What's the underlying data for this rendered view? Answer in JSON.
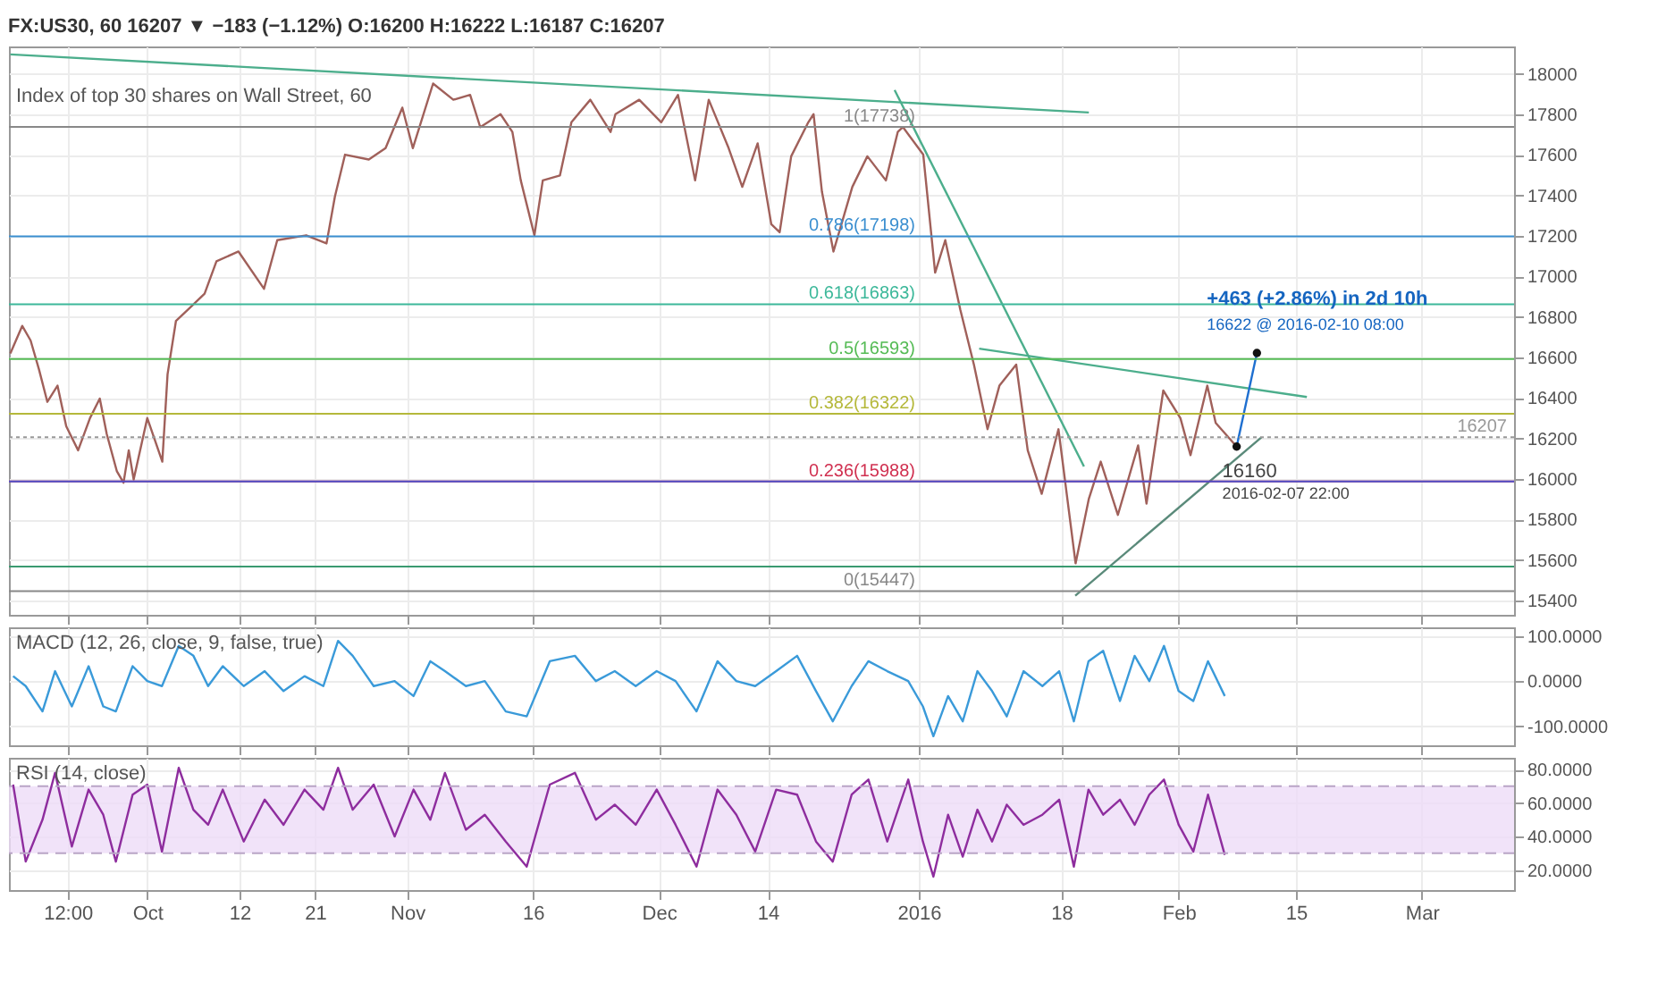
{
  "chart_data": [
    {
      "type": "line",
      "title": "FX:US30, 60 16207 ▼ −183 (−1.12%) O:16200 H:16222 L:16187 C:16207",
      "subtitle": "Index of top 30 shares on Wall Street, 60",
      "series": [
        {
          "color": "#a0605a",
          "x": [
            "2015-09-14T16:00",
            "2015-09-16T02:00",
            "2015-09-17T02:00",
            "2015-09-18T02:00",
            "2015-09-19T02:00",
            "2015-09-20T07:00",
            "2015-09-21T08:00",
            "2015-09-22T18:00",
            "2015-09-24T04:00",
            "2015-09-25T08:00",
            "2015-09-26T04:00",
            "2015-09-27T09:00",
            "2015-09-28T04:00",
            "2015-09-28T19:00",
            "2015-09-29T09:00",
            "2015-10-01T00:00",
            "2015-10-02T19:00",
            "2015-10-03T10:00",
            "2015-10-04T10:00",
            "2015-10-05T20:00",
            "2015-10-07T20:00",
            "2015-10-09T06:00",
            "2015-10-11T21:00",
            "2015-10-14T22:00",
            "2015-10-16T12:00",
            "2015-10-19T23:00",
            "2015-10-22T09:00",
            "2015-10-23T09:00",
            "2015-10-24T14:00",
            "2015-10-27T10:00",
            "2015-10-29T10:00",
            "2015-10-31T10:00",
            "2015-11-01T16:00",
            "2015-11-04T02:00",
            "2015-11-06T12:00",
            "2015-11-08T12:00",
            "2015-11-09T17:00",
            "2015-11-12T03:00",
            "2015-11-13T13:00",
            "2015-11-14T13:00",
            "2015-11-16T04:00",
            "2015-11-17T04:00",
            "2015-11-19T05:00",
            "2015-11-20T14:00",
            "2015-11-22T20:00",
            "2015-11-25T06:00",
            "2015-11-25T20:00",
            "2015-11-28T16:00",
            "2015-12-01T07:00",
            "2015-12-03T07:00",
            "2015-12-05T08:00",
            "2015-12-06T23:00",
            "2015-12-09T08:00",
            "2015-12-10T23:00",
            "2015-12-12T19:00",
            "2015-12-14T10:00",
            "2015-12-15T10:00",
            "2015-12-16T19:00",
            "2015-12-18T20:00",
            "2015-12-19T11:00",
            "2015-12-20T11:00",
            "2015-12-21T20:00",
            "2015-12-24T02:00",
            "2015-12-25T21:00",
            "2015-12-28T02:00",
            "2015-12-29T12:00",
            "2015-12-30T03:00",
            "2016-01-01T13:00",
            "2016-01-02T23:00",
            "2016-01-04T04:00",
            "2016-01-05T23:00",
            "2016-01-07T14:00",
            "2016-01-09T05:00",
            "2016-01-10T15:00",
            "2016-01-12T15:00",
            "2016-01-14T00:00",
            "2016-01-15T16:00",
            "2016-01-17T16:00",
            "2016-01-19T17:00",
            "2016-01-21T07:00",
            "2016-01-22T17:00",
            "2016-01-24T18:00",
            "2016-01-27T04:00",
            "2016-01-28T04:00",
            "2016-01-30T04:00",
            "2016-02-01T05:00",
            "2016-02-02T10:00",
            "2016-02-04T10:00",
            "2016-02-05T10:00",
            "2016-02-07T22:00"
          ],
          "values": [
            16620,
            16756,
            16684,
            16541,
            16381,
            16461,
            16261,
            16142,
            16301,
            16397,
            16222,
            16038,
            15982,
            16142,
            15998,
            16301,
            16086,
            16517,
            16780,
            16836,
            16915,
            17075,
            17123,
            16939,
            17179,
            17203,
            17163,
            17394,
            17601,
            17577,
            17633,
            17833,
            17633,
            17952,
            17872,
            17896,
            17737,
            17801,
            17713,
            17474,
            17203,
            17474,
            17498,
            17761,
            17872,
            17713,
            17801,
            17872,
            17761,
            17896,
            17474,
            17872,
            17633,
            17442,
            17657,
            17258,
            17218,
            17593,
            17761,
            17801,
            17418,
            17123,
            17442,
            17593,
            17474,
            17713,
            17737,
            17601,
            17019,
            17179,
            16836,
            16565,
            16246,
            16461,
            16565,
            16142,
            15927,
            16246,
            15584,
            15903,
            16086,
            15823,
            16166,
            15879,
            16437,
            16301,
            16118,
            16461,
            16277,
            16160
          ]
        },
        {
          "type": "line",
          "color": "#4cae8c",
          "x": [
            "2015-09-14T16:00",
            "2016-01-21T07:00"
          ],
          "values": [
            18096,
            17809
          ]
        },
        {
          "type": "line",
          "color": "#4cae8c",
          "x": [
            "2015-12-29T03:00",
            "2016-01-20T17:00"
          ],
          "values": [
            17920,
            16062
          ]
        },
        {
          "type": "line",
          "color": "#4cae8c",
          "x": [
            "2016-01-08T05:00",
            "2016-02-16T07:00"
          ],
          "values": [
            16644,
            16405
          ]
        },
        {
          "type": "line",
          "color": "#5a8a7a",
          "x": [
            "2016-01-19T16:00",
            "2016-02-10T21:00"
          ],
          "values": [
            15424,
            16206
          ]
        },
        {
          "type": "line",
          "color": "#1e6fd0",
          "marker": "circle",
          "x": [
            "2016-02-07T22:00",
            "2016-02-10T08:00"
          ],
          "values": [
            16160,
            16622
          ]
        }
      ],
      "xlim": [
        "2015-09-14T12:00",
        "2016-03-12T00:00"
      ],
      "xticks": [
        {
          "value": "2015-09-21T12:00",
          "label": null
        },
        {
          "value": "2015-10-01",
          "label": null
        },
        {
          "value": "2015-10-12",
          "label": null
        },
        {
          "value": "2015-10-21",
          "label": null
        },
        {
          "value": "2015-11-01",
          "label": null
        },
        {
          "value": "2015-11-16",
          "label": null
        },
        {
          "value": "2015-12-01",
          "label": null
        },
        {
          "value": "2015-12-14",
          "label": null
        },
        {
          "value": "2016-01-01",
          "label": null
        },
        {
          "value": "2016-01-18",
          "label": null
        },
        {
          "value": "2016-02-01",
          "label": null
        },
        {
          "value": "2016-02-15",
          "label": null
        },
        {
          "value": "2016-03-01",
          "label": null
        }
      ],
      "ylim": [
        15330,
        18135
      ],
      "yticks": [
        15400,
        15600,
        15800,
        16000,
        16200,
        16400,
        16600,
        16800,
        17000,
        17200,
        17400,
        17600,
        17800,
        18000
      ],
      "ref_lines": [
        {
          "axis": "y",
          "value": 17738,
          "label": "1(17738)",
          "color": "#888888"
        },
        {
          "axis": "y",
          "value": 17198,
          "label": "0.786(17198)",
          "color": "#3b8fd0"
        },
        {
          "axis": "y",
          "value": 16863,
          "label": "0.618(16863)",
          "color": "#3cb89a"
        },
        {
          "axis": "y",
          "value": 16593,
          "label": "0.5(16593)",
          "color": "#55bb55"
        },
        {
          "axis": "y",
          "value": 16322,
          "label": "0.382(16322)",
          "color": "#b5b83a"
        },
        {
          "axis": "y",
          "value": 15988,
          "label": "0.236(15988)",
          "color": "#d03050"
        },
        {
          "axis": "y",
          "value": 15447,
          "label": "0(15447)",
          "color": "#888888"
        },
        {
          "axis": "y",
          "value": 15988,
          "color": "#5050c8"
        },
        {
          "axis": "y",
          "value": 15568,
          "color": "#3a9a70"
        },
        {
          "axis": "y",
          "value": 16207,
          "label": "16207",
          "color": "#999999",
          "line_style": "dotted"
        }
      ],
      "annotations": [
        {
          "text": "+463 (+2.86%) in 2d 10h",
          "x": "2016-02-10T08:00",
          "y": 16622
        },
        {
          "text": "16622 @ 2016-02-10 08:00",
          "x": "2016-02-10T08:00",
          "y": 16622
        },
        {
          "text": "16160",
          "x": "2016-02-07T22:00",
          "y": 16160
        },
        {
          "text": "2016-02-07 22:00",
          "x": "2016-02-07T22:00",
          "y": 16160
        }
      ],
      "grid": true,
      "tick_labels": "y"
    },
    {
      "type": "line",
      "title": "MACD (12, 26, close, 9, false, true)",
      "series": [
        {
          "color": "#3a9ad9",
          "x": [
            "2015-09-15T00:00",
            "2015-09-16T12:00",
            "2015-09-18T12:00",
            "2015-09-20T00:00",
            "2015-09-22T00:00",
            "2015-09-24T00:00",
            "2015-09-25T18:00",
            "2015-09-27T06:00",
            "2015-09-29T06:00",
            "2015-10-01T00:00",
            "2015-10-02T18:00",
            "2015-10-04T18:00",
            "2015-10-06T12:00",
            "2015-10-08T06:00",
            "2015-10-10T00:00",
            "2015-10-12T12:00",
            "2015-10-15T00:00",
            "2015-10-17T06:00",
            "2015-10-19T18:00",
            "2015-10-22T00:00",
            "2015-10-23T18:00",
            "2015-10-25T12:00",
            "2015-10-28T00:00",
            "2015-10-30T12:00",
            "2015-11-01T18:00",
            "2015-11-03T18:00",
            "2015-11-05T12:00",
            "2015-11-08T00:00",
            "2015-11-10T06:00",
            "2015-11-12T18:00",
            "2015-11-15T06:00",
            "2015-11-18T00:00",
            "2015-11-21T00:00",
            "2015-11-23T12:00",
            "2015-11-25T18:00",
            "2015-11-28T06:00",
            "2015-11-30T18:00",
            "2015-12-03T00:00",
            "2015-12-05T12:00",
            "2015-12-08T00:00",
            "2015-12-10T06:00",
            "2015-12-12T12:00",
            "2015-12-15T00:00",
            "2015-12-17T12:00",
            "2015-12-19T18:00",
            "2015-12-21T18:00",
            "2015-12-24T00:00",
            "2015-12-26T00:00",
            "2015-12-28T06:00",
            "2015-12-30T18:00",
            "2016-01-01T12:00",
            "2016-01-02T18:00",
            "2016-01-04T12:00",
            "2016-01-06T06:00",
            "2016-01-08T00:00",
            "2016-01-09T18:00",
            "2016-01-11T12:00",
            "2016-01-13T12:00",
            "2016-01-15T18:00",
            "2016-01-17T18:00",
            "2016-01-19T12:00",
            "2016-01-21T06:00",
            "2016-01-23T00:00",
            "2016-01-25T00:00",
            "2016-01-26T18:00",
            "2016-01-28T12:00",
            "2016-01-30T06:00",
            "2016-02-01T00:00",
            "2016-02-02T18:00",
            "2016-02-04T12:00",
            "2016-02-06T12:00"
          ],
          "values": [
            11,
            -11,
            -67,
            22,
            -56,
            33,
            -56,
            -67,
            33,
            0,
            -11,
            78,
            56,
            -11,
            33,
            -11,
            22,
            -22,
            11,
            -11,
            89,
            56,
            -11,
            0,
            -33,
            44,
            22,
            -11,
            0,
            -67,
            -78,
            44,
            56,
            0,
            22,
            -11,
            22,
            0,
            -67,
            44,
            0,
            -11,
            22,
            56,
            -22,
            -89,
            -11,
            44,
            22,
            0,
            -56,
            -122,
            -33,
            -89,
            22,
            -22,
            -78,
            22,
            -11,
            22,
            -89,
            44,
            67,
            -44,
            56,
            0,
            78,
            -22,
            -44,
            44,
            -33
          ]
        }
      ],
      "xlim": [
        "2015-09-14T12:00",
        "2016-03-12T00:00"
      ],
      "xticks": [
        {
          "value": "2015-09-21T12:00",
          "label": null
        },
        {
          "value": "2015-10-01",
          "label": null
        },
        {
          "value": "2015-10-12",
          "label": null
        },
        {
          "value": "2015-10-21",
          "label": null
        },
        {
          "value": "2015-11-01",
          "label": null
        },
        {
          "value": "2015-11-16",
          "label": null
        },
        {
          "value": "2015-12-01",
          "label": null
        },
        {
          "value": "2015-12-14",
          "label": null
        },
        {
          "value": "2016-01-01",
          "label": null
        },
        {
          "value": "2016-01-18",
          "label": null
        },
        {
          "value": "2016-02-01",
          "label": null
        },
        {
          "value": "2016-02-15",
          "label": null
        },
        {
          "value": "2016-03-01",
          "label": null
        }
      ],
      "ylim": [
        -142,
        119
      ],
      "yticks": [
        {
          "value": -100,
          "label": "-100.0000"
        },
        {
          "value": 0,
          "label": "0.0000"
        },
        {
          "value": 100,
          "label": "100.0000"
        }
      ],
      "grid": true,
      "tick_labels": "y"
    },
    {
      "type": "line",
      "title": "RSI (14, close)",
      "series": [
        {
          "color": "#8e2d9e",
          "x": [
            "2015-09-15T00:00",
            "2015-09-16T12:00",
            "2015-09-18T12:00",
            "2015-09-20T00:00",
            "2015-09-22T00:00",
            "2015-09-24T00:00",
            "2015-09-25T18:00",
            "2015-09-27T06:00",
            "2015-09-29T06:00",
            "2015-10-01T00:00",
            "2015-10-02T18:00",
            "2015-10-04T18:00",
            "2015-10-06T12:00",
            "2015-10-08T06:00",
            "2015-10-10T00:00",
            "2015-10-12T12:00",
            "2015-10-15T00:00",
            "2015-10-17T06:00",
            "2015-10-19T18:00",
            "2015-10-22T00:00",
            "2015-10-23T18:00",
            "2015-10-25T12:00",
            "2015-10-28T00:00",
            "2015-10-30T12:00",
            "2015-11-01T18:00",
            "2015-11-03T18:00",
            "2015-11-05T12:00",
            "2015-11-08T00:00",
            "2015-11-10T06:00",
            "2015-11-12T18:00",
            "2015-11-15T06:00",
            "2015-11-18T00:00",
            "2015-11-21T00:00",
            "2015-11-23T12:00",
            "2015-11-25T18:00",
            "2015-11-28T06:00",
            "2015-11-30T18:00",
            "2015-12-03T00:00",
            "2015-12-05T12:00",
            "2015-12-08T00:00",
            "2015-12-10T06:00",
            "2015-12-12T12:00",
            "2015-12-15T00:00",
            "2015-12-17T12:00",
            "2015-12-19T18:00",
            "2015-12-21T18:00",
            "2015-12-24T00:00",
            "2015-12-26T00:00",
            "2015-12-28T06:00",
            "2015-12-30T18:00",
            "2016-01-01T12:00",
            "2016-01-02T18:00",
            "2016-01-04T12:00",
            "2016-01-06T06:00",
            "2016-01-08T00:00",
            "2016-01-09T18:00",
            "2016-01-11T12:00",
            "2016-01-13T12:00",
            "2016-01-15T18:00",
            "2016-01-17T18:00",
            "2016-01-19T12:00",
            "2016-01-21T06:00",
            "2016-01-23T00:00",
            "2016-01-25T00:00",
            "2016-01-26T18:00",
            "2016-01-28T12:00",
            "2016-01-30T06:00",
            "2016-02-01T00:00",
            "2016-02-02T18:00",
            "2016-02-04T12:00",
            "2016-02-06T12:00"
          ],
          "values": [
            71,
            25,
            50,
            78,
            34,
            68,
            53,
            25,
            65,
            71,
            31,
            81,
            56,
            47,
            68,
            37,
            62,
            47,
            68,
            56,
            81,
            56,
            71,
            40,
            68,
            50,
            78,
            44,
            53,
            37,
            22,
            71,
            78,
            50,
            59,
            47,
            68,
            47,
            22,
            68,
            53,
            31,
            68,
            65,
            37,
            25,
            65,
            74,
            37,
            74,
            37,
            16,
            53,
            28,
            56,
            37,
            59,
            47,
            53,
            62,
            22,
            68,
            53,
            62,
            47,
            65,
            74,
            47,
            31,
            65,
            29
          ]
        }
      ],
      "xlim": [
        "2015-09-14T12:00",
        "2016-03-12T00:00"
      ],
      "xticks": [
        {
          "value": "2015-09-21T12:00",
          "label": "12:00"
        },
        {
          "value": "2015-10-01",
          "label": "Oct"
        },
        {
          "value": "2015-10-12",
          "label": "12"
        },
        {
          "value": "2015-10-21",
          "label": "21"
        },
        {
          "value": "2015-11-01",
          "label": "Nov"
        },
        {
          "value": "2015-11-16",
          "label": "16"
        },
        {
          "value": "2015-12-01",
          "label": "Dec"
        },
        {
          "value": "2015-12-14",
          "label": "14"
        },
        {
          "value": "2016-01-01",
          "label": "2016"
        },
        {
          "value": "2016-01-18",
          "label": "18"
        },
        {
          "value": "2016-02-01",
          "label": "Feb"
        },
        {
          "value": "2016-02-15",
          "label": "15"
        },
        {
          "value": "2016-03-01",
          "label": "Mar"
        }
      ],
      "ylim": [
        8,
        87
      ],
      "yticks": [
        {
          "value": 20,
          "label": "20.0000"
        },
        {
          "value": 40,
          "label": "40.0000"
        },
        {
          "value": 60,
          "label": "60.0000"
        },
        {
          "value": 80,
          "label": "80.0000"
        }
      ],
      "bands": [
        {
          "axis": "y",
          "from": 30,
          "to": 70,
          "color": "#eedcf7"
        }
      ],
      "ref_lines": [
        {
          "axis": "y",
          "value": 70,
          "color": "#b9a5c6",
          "line_style": "dashed"
        },
        {
          "axis": "y",
          "value": 30,
          "color": "#b9a5c6",
          "line_style": "dashed"
        }
      ],
      "grid": true
    }
  ]
}
